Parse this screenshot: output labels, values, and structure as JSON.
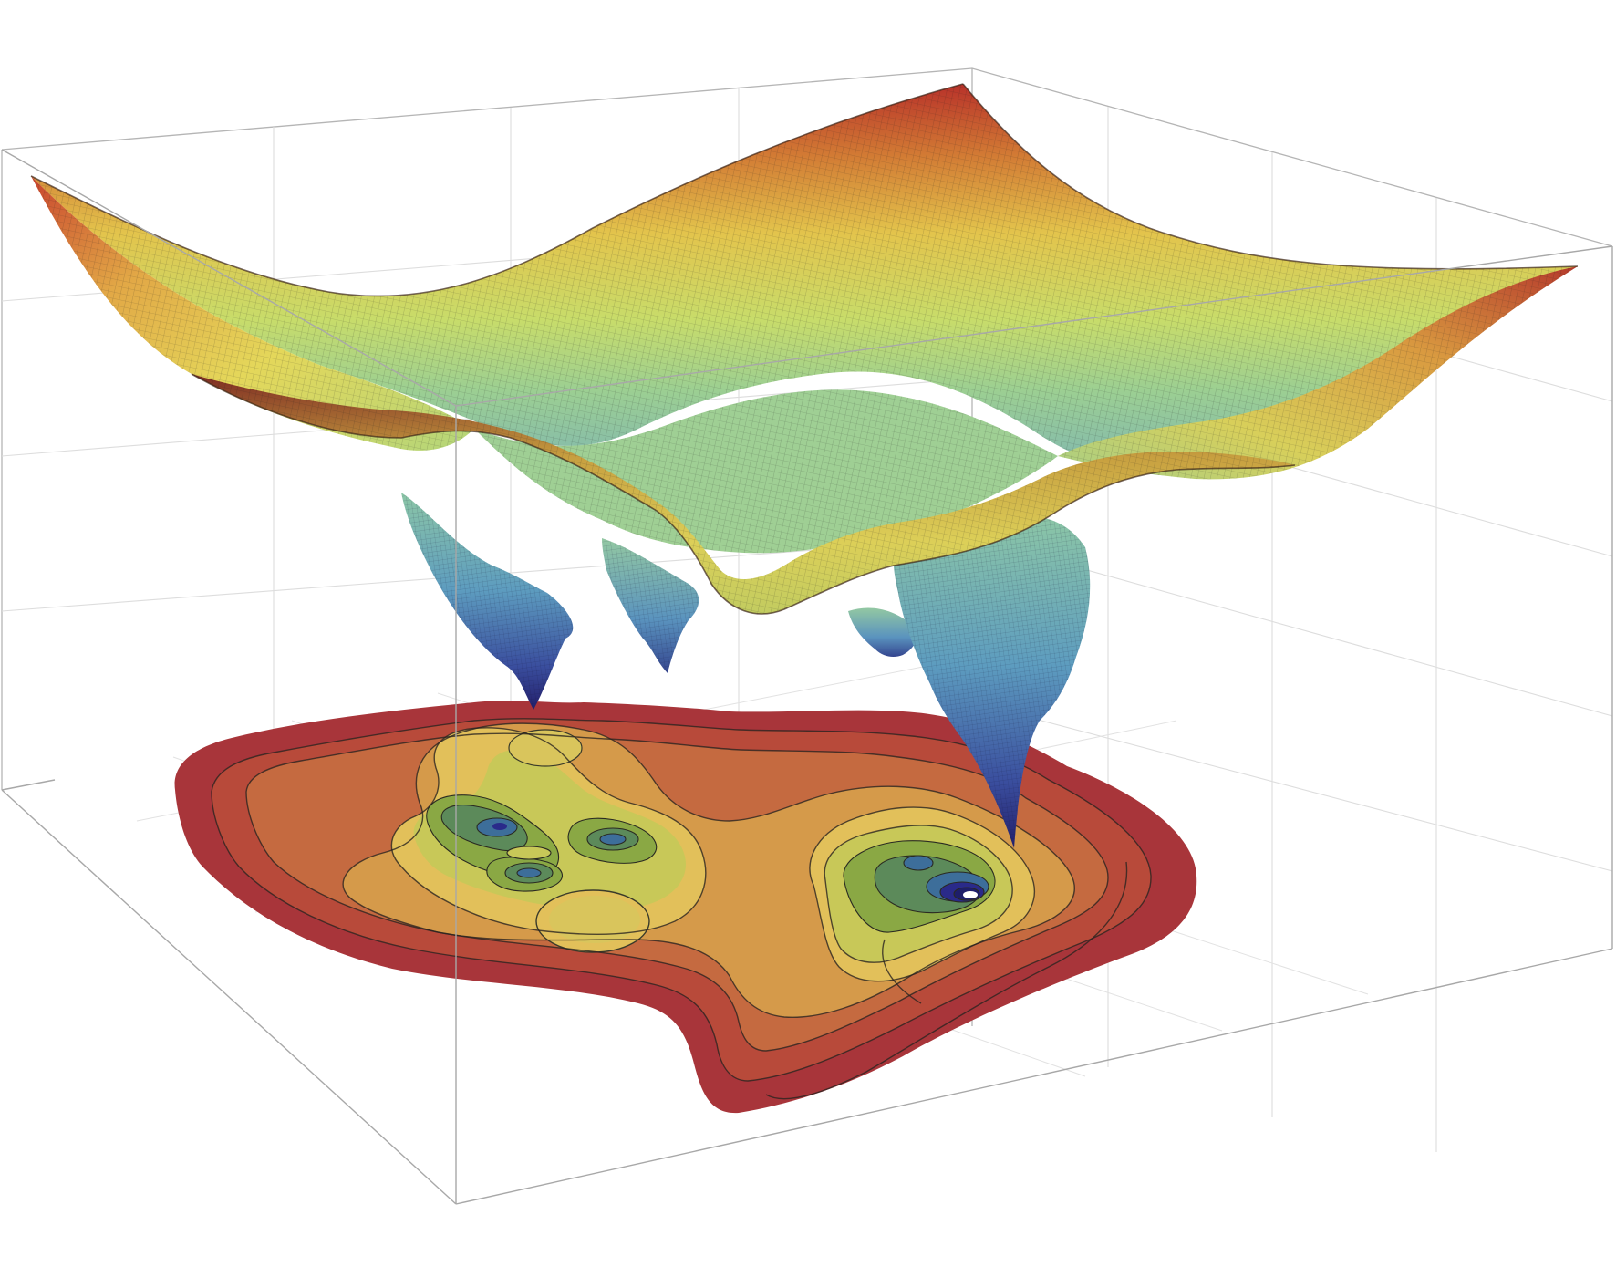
{
  "chart_data": {
    "type": "surface3d",
    "title": "",
    "xlabel": "",
    "ylabel": "",
    "zlabel": "",
    "axes_shown": false,
    "tick_labels_shown": false,
    "grid": true,
    "box": true,
    "colormap": [
      "#2f2a7d",
      "#3b5fa8",
      "#5fa0c0",
      "#9cd0a0",
      "#d8e070",
      "#e6c250",
      "#d08a40",
      "#c0503a",
      "#a8302e"
    ],
    "surface": {
      "description_free": true,
      "corner_heights": [
        "high",
        "high",
        "high",
        "high"
      ],
      "wells": [
        {
          "depth": "deep",
          "count": 1
        },
        {
          "depth": "medium",
          "count": 3
        }
      ]
    },
    "contour_projection": {
      "shown": true,
      "basins": 2,
      "levels": 9,
      "colors": [
        "#2a2a8a",
        "#3d6e9a",
        "#5c8a5a",
        "#8aa844",
        "#c8c858",
        "#e2c05a",
        "#d59a4a",
        "#c56a40",
        "#b84a3a",
        "#a8353a"
      ]
    }
  }
}
